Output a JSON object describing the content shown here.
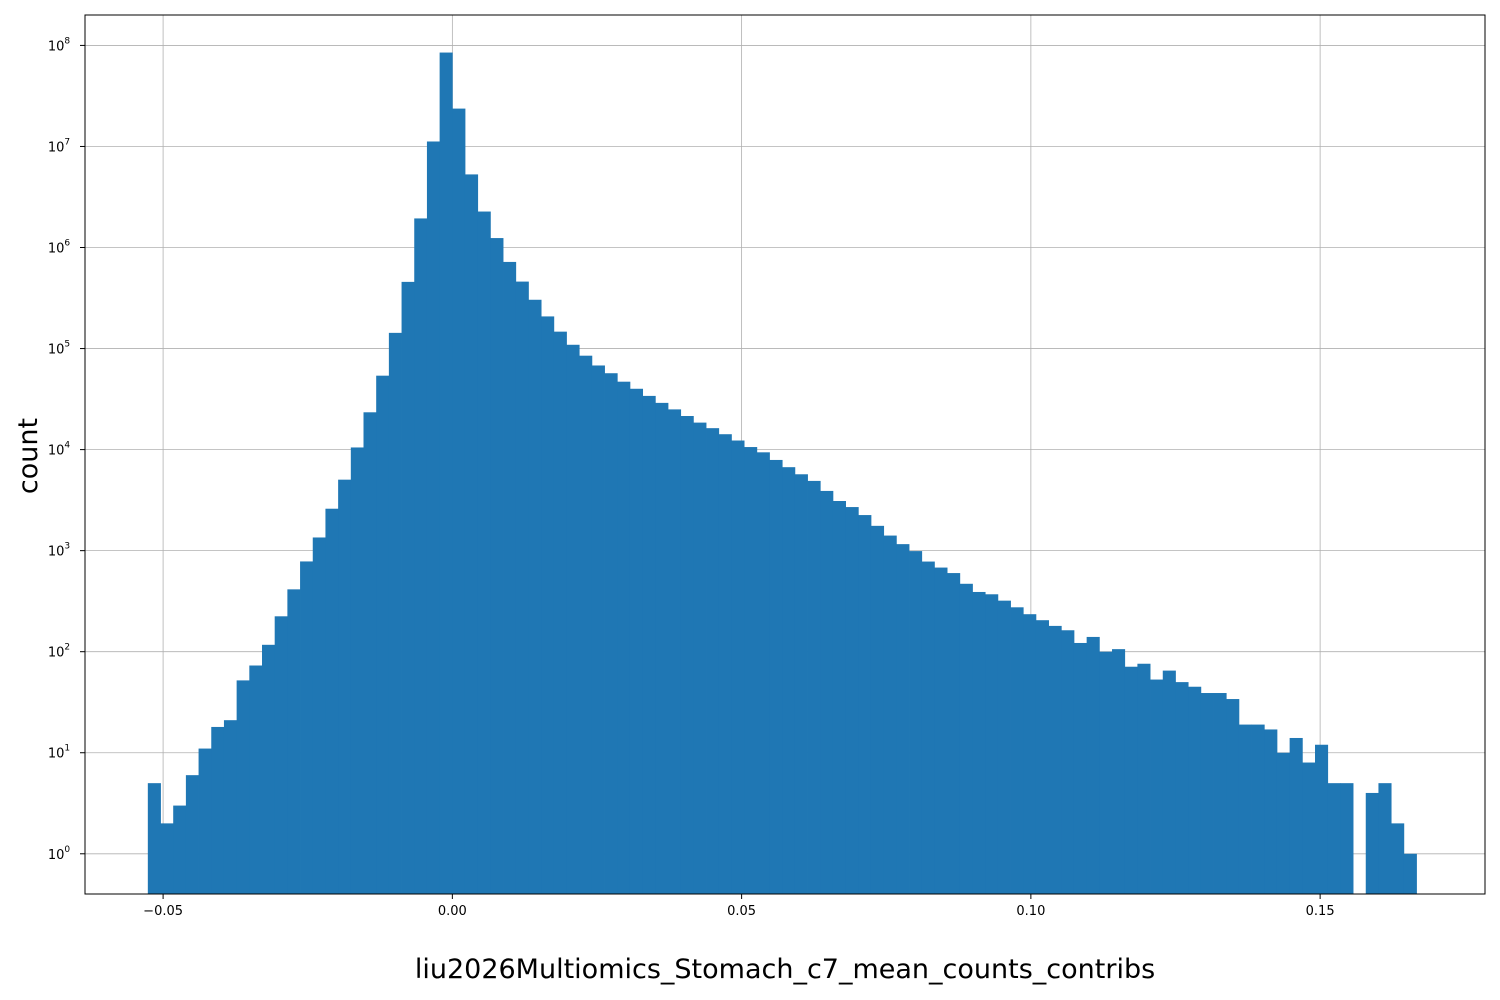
{
  "chart_data": {
    "type": "bar",
    "subtype": "histogram",
    "title": "",
    "xlabel": "liu2026Multiomics_Stomach_c7_mean_counts_contribs",
    "ylabel": "count",
    "yscale": "log",
    "grid": true,
    "bar_color": "#1f77b4",
    "xlim": [
      -0.0635,
      0.1785
    ],
    "ylim": [
      0.4,
      200000000
    ],
    "xticks": [
      {
        "value": -0.05,
        "label": "−0.05"
      },
      {
        "value": 0.0,
        "label": "0.00"
      },
      {
        "value": 0.05,
        "label": "0.05"
      },
      {
        "value": 0.1,
        "label": "0.10"
      },
      {
        "value": 0.15,
        "label": "0.15"
      }
    ],
    "yticks": [
      {
        "value": 1,
        "base": "10",
        "exp": "0"
      },
      {
        "value": 10,
        "base": "10",
        "exp": "1"
      },
      {
        "value": 100,
        "base": "10",
        "exp": "2"
      },
      {
        "value": 1000,
        "base": "10",
        "exp": "3"
      },
      {
        "value": 10000,
        "base": "10",
        "exp": "4"
      },
      {
        "value": 100000,
        "base": "10",
        "exp": "5"
      },
      {
        "value": 1000000,
        "base": "10",
        "exp": "6"
      },
      {
        "value": 10000000,
        "base": "10",
        "exp": "7"
      },
      {
        "value": 100000000,
        "base": "10",
        "exp": "8"
      }
    ],
    "bin_start": -0.05264,
    "bin_width": 0.002193,
    "values": [
      5,
      2,
      3,
      6,
      11,
      18,
      21,
      52,
      73,
      117,
      224,
      414,
      782,
      1350,
      2600,
      5040,
      10500,
      23400,
      53900,
      143000,
      457000,
      1940000,
      11200000,
      85000000,
      23700000,
      5290000,
      2270000,
      1240000,
      720000,
      460000,
      304000,
      208000,
      147000,
      109000,
      85000,
      68000,
      57000,
      47000,
      40000,
      34000,
      29000,
      25000,
      21500,
      18500,
      16300,
      14200,
      12300,
      10600,
      9400,
      7900,
      6700,
      5700,
      4900,
      3900,
      3100,
      2700,
      2250,
      1760,
      1410,
      1160,
      990,
      780,
      680,
      600,
      470,
      390,
      370,
      320,
      275,
      235,
      205,
      180,
      163,
      122,
      140,
      100,
      106,
      71,
      76,
      53,
      65,
      50,
      45,
      39,
      39,
      34,
      19,
      19,
      17,
      10,
      14,
      8,
      12,
      5,
      5,
      0,
      4,
      5,
      2,
      1
    ]
  }
}
